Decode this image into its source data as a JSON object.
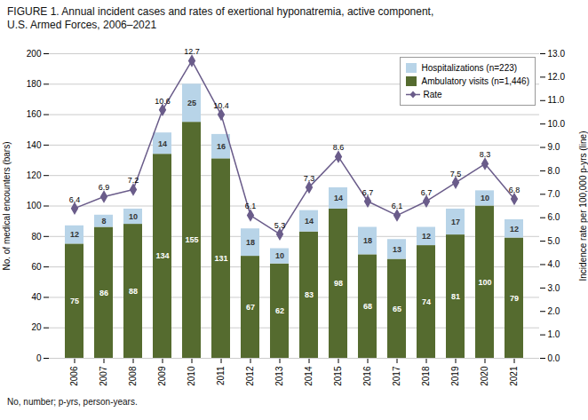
{
  "chart_data": {
    "type": "bar",
    "title": "FIGURE 1. Annual incident cases and rates of exertional hyponatremia, active component,\nU.S. Armed Forces, 2006–2021",
    "caption": "No, number; p-yrs, person-years.",
    "categories": [
      "2006",
      "2007",
      "2008",
      "2009",
      "2010",
      "2011",
      "2012",
      "2013",
      "2014",
      "2015",
      "2016",
      "2017",
      "2018",
      "2019",
      "2020",
      "2021"
    ],
    "stacked": true,
    "data_labels": true,
    "grid": true,
    "legend": "upper right",
    "ylabel": "No. of medical encounters (bars)",
    "y2label": "Incidence rate per 100,000 p-yrs (line)",
    "ylim": [
      0,
      200
    ],
    "yticks": [
      0,
      20,
      40,
      60,
      80,
      100,
      120,
      140,
      160,
      180,
      200
    ],
    "y2lim": [
      0,
      13.0
    ],
    "y2ticks": [
      {
        "value": 0,
        "label": "0.0"
      },
      {
        "value": 1,
        "label": "1.0"
      },
      {
        "value": 2,
        "label": "2.0"
      },
      {
        "value": 3,
        "label": "3.0"
      },
      {
        "value": 4,
        "label": "4.0"
      },
      {
        "value": 5,
        "label": "5.0"
      },
      {
        "value": 6,
        "label": "6.0"
      },
      {
        "value": 7,
        "label": "7.0"
      },
      {
        "value": 8,
        "label": "8.0"
      },
      {
        "value": 9,
        "label": "9.0"
      },
      {
        "value": 10,
        "label": "10.0"
      },
      {
        "value": 11,
        "label": "11.0"
      },
      {
        "value": 12,
        "label": "12.0"
      },
      {
        "value": 13,
        "label": "13.0"
      }
    ],
    "series": [
      {
        "name": "Ambulatory visits (n=1,446)",
        "color": "#556B2F",
        "values": [
          75,
          86,
          88,
          134,
          155,
          131,
          67,
          62,
          83,
          98,
          68,
          65,
          74,
          81,
          100,
          79
        ]
      },
      {
        "name": "Hospitalizations (n=223)",
        "color": "#B8D4E8",
        "values": [
          12,
          8,
          10,
          14,
          25,
          16,
          18,
          10,
          14,
          14,
          18,
          13,
          12,
          17,
          10,
          12
        ]
      },
      {
        "name": "Rate",
        "type": "line",
        "axis": "y2",
        "color": "#6A5C8A",
        "marker": "diamond",
        "values": [
          6.4,
          6.9,
          7.2,
          10.6,
          12.7,
          10.4,
          6.1,
          5.3,
          7.3,
          8.6,
          6.7,
          6.1,
          6.7,
          7.5,
          8.3,
          6.8
        ]
      }
    ]
  }
}
